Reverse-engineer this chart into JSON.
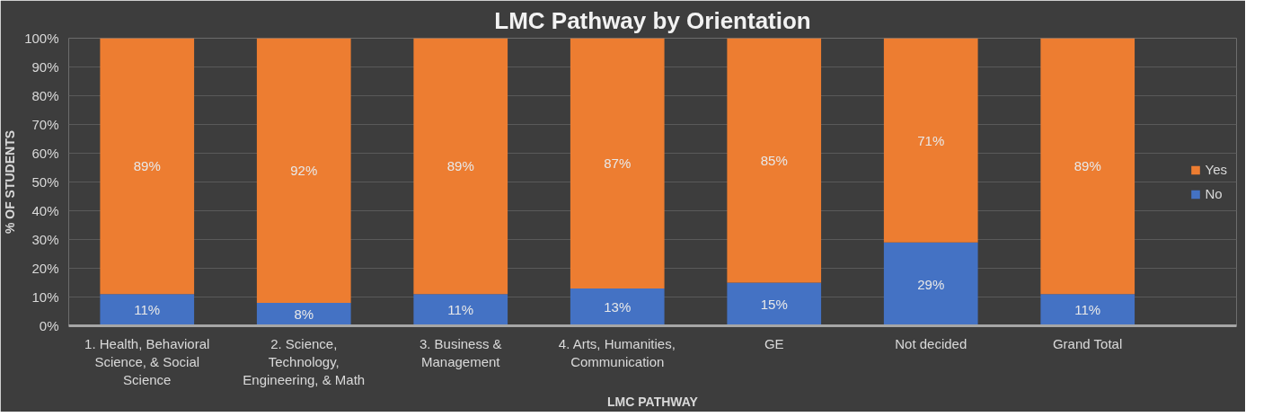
{
  "chart_data": {
    "type": "bar",
    "stacked": true,
    "title": "LMC Pathway by Orientation",
    "xlabel": "LMC PATHWAY",
    "ylabel": "% OF STUDENTS",
    "categories": [
      "1. Health, Behavioral Science, & Social Science",
      "2. Science, Technology, Engineering, & Math",
      "3. Business & Management",
      "4. Arts, Humanities, Communication",
      "GE",
      "Not decided",
      "Grand Total"
    ],
    "series": [
      {
        "name": "No",
        "color": "#4472c4",
        "values": [
          11,
          8,
          11,
          13,
          15,
          29,
          11
        ],
        "value_labels": [
          "11%",
          "8%",
          "11%",
          "13%",
          "15%",
          "29%",
          "11%"
        ]
      },
      {
        "name": "Yes",
        "color": "#ed7d31",
        "values": [
          89,
          92,
          89,
          87,
          85,
          71,
          89
        ],
        "value_labels": [
          "89%",
          "92%",
          "89%",
          "87%",
          "85%",
          "71%",
          "89%"
        ]
      }
    ],
    "ylim": [
      0,
      100
    ],
    "yticks": [
      {
        "value": 0,
        "label": "0%"
      },
      {
        "value": 10,
        "label": "10%"
      },
      {
        "value": 20,
        "label": "20%"
      },
      {
        "value": 30,
        "label": "30%"
      },
      {
        "value": 40,
        "label": "40%"
      },
      {
        "value": 50,
        "label": "50%"
      },
      {
        "value": 60,
        "label": "60%"
      },
      {
        "value": 70,
        "label": "70%"
      },
      {
        "value": 80,
        "label": "80%"
      },
      {
        "value": 90,
        "label": "90%"
      },
      {
        "value": 100,
        "label": "100%"
      }
    ],
    "grid": "y",
    "legend": "right"
  }
}
